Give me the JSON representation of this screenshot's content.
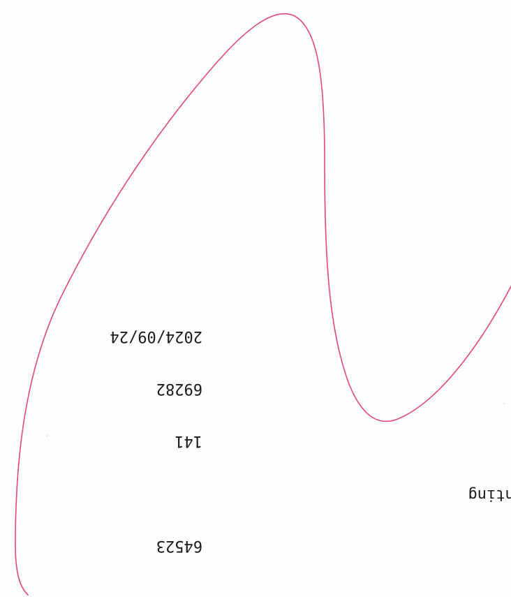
{
  "sheet": {
    "trace_color": "#e2487a",
    "number_block": {
      "date": "2024/09/24",
      "code_a": "69282",
      "code_b": "141",
      "code_c": "64523"
    },
    "word_fragment": "inting"
  }
}
